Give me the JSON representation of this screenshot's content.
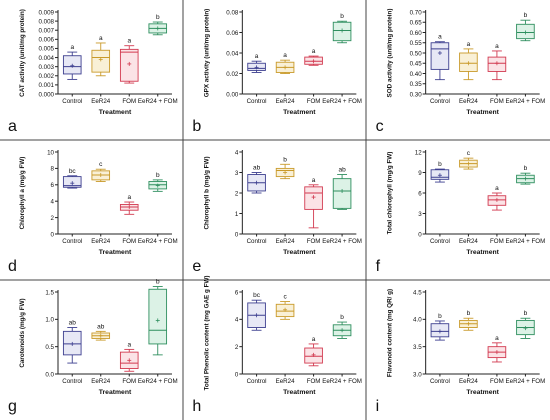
{
  "figure": {
    "panels": [
      {
        "letter": "a",
        "ylabel": "CAT activity (unit/mg protein)",
        "xlabel": "Treatment"
      },
      {
        "letter": "b",
        "ylabel": "GPX activity (unit/mg protein)",
        "xlabel": "Treatment"
      },
      {
        "letter": "c",
        "ylabel": "SOD activity (unit/mg protein)",
        "xlabel": "Treatment"
      },
      {
        "letter": "d",
        "ylabel": "Chlorophyll a (mg/g FW)",
        "xlabel": "Treatment"
      },
      {
        "letter": "e",
        "ylabel": "Chlorophyll b (mg/g FW)",
        "xlabel": "Treatment"
      },
      {
        "letter": "f",
        "ylabel": "Total chlorophyll (mg/g FW)",
        "xlabel": "Treatment"
      },
      {
        "letter": "g",
        "ylabel": "Carotenoids (mg/g FW)",
        "xlabel": "Treatment"
      },
      {
        "letter": "h",
        "ylabel": "Total Phenolic content (mg GAE g FW)",
        "xlabel": "Treatment"
      },
      {
        "letter": "i",
        "ylabel": "Flavonoid content (mg QR/ g)",
        "xlabel": "Treatment"
      }
    ]
  },
  "chart_data": [
    {
      "type": "box",
      "panel": "a",
      "ylabel": "CAT activity (unit/mg protein)",
      "xlabel": "Treatment",
      "categories": [
        "Control",
        "EeR24",
        "FOM",
        "EeR24 + FOM"
      ],
      "ylim": [
        0,
        0.009
      ],
      "yticks": [
        0,
        0.001,
        0.002,
        0.003,
        0.004,
        0.005,
        0.006,
        0.007,
        0.008,
        0.009
      ],
      "ytick_labels": [
        "0.000",
        "0.001",
        "0.002",
        "0.003",
        "0.004",
        "0.005",
        "0.006",
        "0.007",
        "0.008",
        "0.009"
      ],
      "boxes": [
        {
          "min": 0.0016,
          "q1": 0.0022,
          "median": 0.003,
          "q3": 0.0042,
          "max": 0.0046,
          "mean": 0.0031,
          "letter": "a"
        },
        {
          "min": 0.002,
          "q1": 0.0024,
          "median": 0.004,
          "q3": 0.0048,
          "max": 0.0056,
          "mean": 0.0038,
          "letter": "a"
        },
        {
          "min": 0.0012,
          "q1": 0.0014,
          "median": 0.0046,
          "q3": 0.0049,
          "max": 0.0053,
          "mean": 0.0033,
          "letter": "a"
        },
        {
          "min": 0.0065,
          "q1": 0.0067,
          "median": 0.0072,
          "q3": 0.0077,
          "max": 0.0079,
          "mean": 0.0072,
          "letter": "b"
        }
      ]
    },
    {
      "type": "box",
      "panel": "b",
      "ylabel": "GPX activity (unit/mg protein)",
      "xlabel": "Treatment",
      "categories": [
        "Control",
        "EeR24",
        "FOM",
        "EeR24 + FOM"
      ],
      "ylim": [
        0,
        0.08
      ],
      "yticks": [
        0,
        0.02,
        0.04,
        0.06,
        0.08
      ],
      "ytick_labels": [
        "0.00",
        "0.02",
        "0.04",
        "0.06",
        "0.08"
      ],
      "boxes": [
        {
          "min": 0.021,
          "q1": 0.023,
          "median": 0.025,
          "q3": 0.03,
          "max": 0.032,
          "mean": 0.026,
          "letter": "a"
        },
        {
          "min": 0.02,
          "q1": 0.021,
          "median": 0.026,
          "q3": 0.031,
          "max": 0.033,
          "mean": 0.026,
          "letter": "a"
        },
        {
          "min": 0.028,
          "q1": 0.029,
          "median": 0.032,
          "q3": 0.036,
          "max": 0.037,
          "mean": 0.032,
          "letter": "a"
        },
        {
          "min": 0.05,
          "q1": 0.052,
          "median": 0.062,
          "q3": 0.07,
          "max": 0.071,
          "mean": 0.062,
          "letter": "b"
        }
      ]
    },
    {
      "type": "box",
      "panel": "c",
      "ylabel": "SOD activity (unit/mg protein)",
      "xlabel": "Treatment",
      "categories": [
        "Control",
        "EeR24",
        "FOM",
        "EeR24 + FOM"
      ],
      "ylim": [
        0.3,
        0.7
      ],
      "yticks": [
        0.3,
        0.35,
        0.4,
        0.45,
        0.5,
        0.55,
        0.6,
        0.65,
        0.7
      ],
      "ytick_labels": [
        "0.30",
        "0.35",
        "0.40",
        "0.45",
        "0.50",
        "0.55",
        "0.60",
        "0.65",
        "0.70"
      ],
      "boxes": [
        {
          "min": 0.37,
          "q1": 0.42,
          "median": 0.52,
          "q3": 0.55,
          "max": 0.555,
          "mean": 0.5,
          "letter": "a"
        },
        {
          "min": 0.37,
          "q1": 0.41,
          "median": 0.45,
          "q3": 0.5,
          "max": 0.52,
          "mean": 0.45,
          "letter": "a"
        },
        {
          "min": 0.37,
          "q1": 0.41,
          "median": 0.45,
          "q3": 0.48,
          "max": 0.51,
          "mean": 0.45,
          "letter": "a"
        },
        {
          "min": 0.56,
          "q1": 0.57,
          "median": 0.6,
          "q3": 0.64,
          "max": 0.66,
          "mean": 0.6,
          "letter": "b"
        }
      ]
    },
    {
      "type": "box",
      "panel": "d",
      "ylabel": "Chlorophyll a (mg/g FW)",
      "xlabel": "Treatment",
      "categories": [
        "Control",
        "EeR24",
        "FOM",
        "EeR24 + FOM"
      ],
      "ylim": [
        0,
        10
      ],
      "yticks": [
        0,
        2,
        4,
        6,
        8,
        10
      ],
      "ytick_labels": [
        "0",
        "2",
        "4",
        "6",
        "8",
        "10"
      ],
      "boxes": [
        {
          "min": 5.6,
          "q1": 5.7,
          "median": 5.9,
          "q3": 7.0,
          "max": 7.1,
          "mean": 6.2,
          "letter": "bc"
        },
        {
          "min": 6.4,
          "q1": 6.6,
          "median": 7.2,
          "q3": 7.7,
          "max": 7.9,
          "mean": 7.2,
          "letter": "c"
        },
        {
          "min": 2.4,
          "q1": 2.9,
          "median": 3.3,
          "q3": 3.6,
          "max": 3.9,
          "mean": 3.3,
          "letter": "a"
        },
        {
          "min": 5.2,
          "q1": 5.5,
          "median": 6.0,
          "q3": 6.4,
          "max": 6.6,
          "mean": 5.9,
          "letter": "b"
        }
      ]
    },
    {
      "type": "box",
      "panel": "e",
      "ylabel": "Chlorophyll b (mg/g FW)",
      "xlabel": "Treatment",
      "categories": [
        "Control",
        "EeR24",
        "FOM",
        "EeR24 + FOM"
      ],
      "ylim": [
        0,
        4
      ],
      "yticks": [
        0,
        1,
        2,
        3,
        4
      ],
      "ytick_labels": [
        "0",
        "1",
        "2",
        "3",
        "4"
      ],
      "boxes": [
        {
          "min": 2.0,
          "q1": 2.1,
          "median": 2.5,
          "q3": 2.9,
          "max": 3.0,
          "mean": 2.5,
          "letter": "ab"
        },
        {
          "min": 2.7,
          "q1": 2.8,
          "median": 3.1,
          "q3": 3.2,
          "max": 3.4,
          "mean": 3.0,
          "letter": "b"
        },
        {
          "min": 0.3,
          "q1": 1.2,
          "median": 2.0,
          "q3": 2.3,
          "max": 2.4,
          "mean": 1.8,
          "letter": "a"
        },
        {
          "min": 1.2,
          "q1": 1.25,
          "median": 2.1,
          "q3": 2.7,
          "max": 2.9,
          "mean": 2.1,
          "letter": "ab"
        }
      ]
    },
    {
      "type": "box",
      "panel": "f",
      "ylabel": "Total chlorophyll (mg/g FW)",
      "xlabel": "Treatment",
      "categories": [
        "Control",
        "EeR24",
        "FOM",
        "EeR24 + FOM"
      ],
      "ylim": [
        0,
        12
      ],
      "yticks": [
        0,
        3,
        6,
        9,
        12
      ],
      "ytick_labels": [
        "0",
        "3",
        "6",
        "9",
        "12"
      ],
      "boxes": [
        {
          "min": 7.6,
          "q1": 8.0,
          "median": 8.3,
          "q3": 9.4,
          "max": 9.5,
          "mean": 8.6,
          "letter": "b"
        },
        {
          "min": 9.5,
          "q1": 9.8,
          "median": 10.3,
          "q3": 10.8,
          "max": 11.1,
          "mean": 10.3,
          "letter": "c"
        },
        {
          "min": 3.5,
          "q1": 4.2,
          "median": 5.0,
          "q3": 5.6,
          "max": 6.0,
          "mean": 5.0,
          "letter": "a"
        },
        {
          "min": 7.3,
          "q1": 7.5,
          "median": 8.1,
          "q3": 8.6,
          "max": 8.9,
          "mean": 8.1,
          "letter": "b"
        }
      ]
    },
    {
      "type": "box",
      "panel": "g",
      "ylabel": "Carotenoids (mg/g FW)",
      "xlabel": "Treatment",
      "categories": [
        "Control",
        "EeR24",
        "FOM",
        "EeR24 + FOM"
      ],
      "ylim": [
        0,
        1.5
      ],
      "yticks": [
        0,
        0.5,
        1.0,
        1.5
      ],
      "ytick_labels": [
        "0.0",
        "0.5",
        "1.0",
        "1.5"
      ],
      "boxes": [
        {
          "min": 0.2,
          "q1": 0.35,
          "median": 0.55,
          "q3": 0.78,
          "max": 0.85,
          "mean": 0.55,
          "letter": "ab"
        },
        {
          "min": 0.62,
          "q1": 0.65,
          "median": 0.7,
          "q3": 0.75,
          "max": 0.78,
          "mean": 0.7,
          "letter": "ab"
        },
        {
          "min": 0.05,
          "q1": 0.1,
          "median": 0.2,
          "q3": 0.4,
          "max": 0.45,
          "mean": 0.25,
          "letter": "a"
        },
        {
          "min": 0.35,
          "q1": 0.55,
          "median": 0.8,
          "q3": 1.55,
          "max": 1.6,
          "mean": 0.98,
          "letter": "b"
        }
      ]
    },
    {
      "type": "box",
      "panel": "h",
      "ylabel": "Total Phenolic content (mg GAE g FW)",
      "xlabel": "Treatment",
      "categories": [
        "Control",
        "EeR24",
        "FOM",
        "EeR24 + FOM"
      ],
      "ylim": [
        0,
        6
      ],
      "yticks": [
        0,
        2,
        4,
        6
      ],
      "ytick_labels": [
        "0",
        "2",
        "4",
        "6"
      ],
      "boxes": [
        {
          "min": 3.2,
          "q1": 3.4,
          "median": 4.3,
          "q3": 5.2,
          "max": 5.4,
          "mean": 4.3,
          "letter": "bc"
        },
        {
          "min": 4.0,
          "q1": 4.2,
          "median": 4.6,
          "q3": 5.1,
          "max": 5.3,
          "mean": 4.7,
          "letter": "c"
        },
        {
          "min": 0.6,
          "q1": 0.8,
          "median": 1.3,
          "q3": 1.9,
          "max": 2.2,
          "mean": 1.4,
          "letter": "a"
        },
        {
          "min": 2.6,
          "q1": 2.8,
          "median": 3.2,
          "q3": 3.6,
          "max": 3.8,
          "mean": 3.2,
          "letter": "b"
        }
      ]
    },
    {
      "type": "box",
      "panel": "i",
      "ylabel": "Flavonoid content (mg QR/ g)",
      "xlabel": "Treatment",
      "categories": [
        "Control",
        "EeR24",
        "FOM",
        "EeR24 + FOM"
      ],
      "ylim": [
        3.0,
        4.5
      ],
      "yticks": [
        3.0,
        3.5,
        4.0,
        4.5
      ],
      "ytick_labels": [
        "3.0",
        "3.5",
        "4.0",
        "4.5"
      ],
      "boxes": [
        {
          "min": 3.62,
          "q1": 3.68,
          "median": 3.78,
          "q3": 3.92,
          "max": 3.97,
          "mean": 3.78,
          "letter": "b"
        },
        {
          "min": 3.8,
          "q1": 3.85,
          "median": 3.92,
          "q3": 3.98,
          "max": 4.02,
          "mean": 3.92,
          "letter": "b"
        },
        {
          "min": 3.22,
          "q1": 3.3,
          "median": 3.4,
          "q3": 3.5,
          "max": 3.57,
          "mean": 3.4,
          "letter": "a"
        },
        {
          "min": 3.65,
          "q1": 3.72,
          "median": 3.85,
          "q3": 3.98,
          "max": 4.02,
          "mean": 3.84,
          "letter": "b"
        }
      ]
    }
  ],
  "colors": {
    "series": [
      "#3d3f8f",
      "#c99a2a",
      "#d23a50",
      "#2f8f5f"
    ],
    "fills": [
      "#e7e8f5",
      "#f9f0d6",
      "#fbe3e6",
      "#dcf2e6"
    ],
    "axis": "#222222",
    "divider": "#444444"
  }
}
